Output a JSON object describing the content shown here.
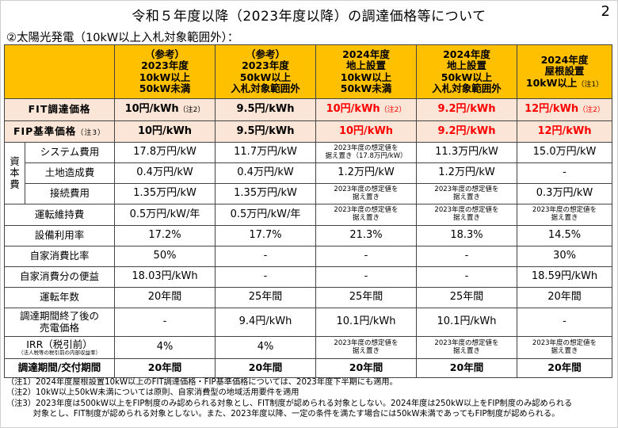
{
  "title": "令和５年度以降（2023年度以降）の調達価格等について",
  "page_number": "2",
  "subtitle": "②太陽光発電（10kW以上入札対象範囲外）：",
  "columns": [
    {
      "lines": [
        "（参考）",
        "2023年度",
        "10kW以上",
        "50kW未満"
      ]
    },
    {
      "lines": [
        "（参考）",
        "2023年度",
        "50kW以上",
        "入札対象範囲外"
      ]
    },
    {
      "lines": [
        "2024年度",
        "地上設置",
        "10kW以上",
        "50kW未満"
      ]
    },
    {
      "lines": [
        "2024年度",
        "地上設置",
        "50kW以上",
        "入札対象範囲外"
      ]
    },
    {
      "lines": [
        "2024年度",
        "屋根設置",
        "10kW以上"
      ],
      "note": "（注1）"
    }
  ],
  "rows": {
    "fit": {
      "label": "FIT調達価格",
      "values": [
        {
          "text": "10円/kWh",
          "note": "（注2）"
        },
        {
          "text": "9.5円/kWh",
          "note": ""
        },
        {
          "text": "10円/kWh",
          "note": "（注2）"
        },
        {
          "text": "9.2円/kWh",
          "note": ""
        },
        {
          "text": "12円/kWh",
          "note": "（注2）"
        }
      ]
    },
    "fip": {
      "label": "FIP基準価格",
      "note": "（注3）",
      "values": [
        "10円/kWh",
        "9.5円/kWh",
        "10円/kWh",
        "9.2円/kWh",
        "12円/kWh"
      ]
    },
    "capital_group_label": "資本費",
    "system_cost": {
      "label": "システム費用",
      "values": [
        "17.8万円/kW",
        "11.7万円/kW",
        "2023年度の想定値を据え置き（17.8万円/kW）",
        "11.3万円/kW",
        "15.0万円/kW"
      ]
    },
    "land_cost": {
      "label": "土地造成費",
      "values": [
        "0.4万円/kW",
        "0.4万円/kW",
        "1.2万円/kW",
        "1.2万円/kW",
        "-"
      ]
    },
    "connection_cost": {
      "label": "接続費用",
      "values": [
        "1.35万円/kW",
        "1.35万円/kW",
        "2023年度の想定値を据え置き",
        "2023年度の想定値を据え置き",
        "0.3万円/kW"
      ]
    },
    "om_cost": {
      "label": "運転維持費",
      "values": [
        "0.5万円/kW/年",
        "0.5万円/kW/年",
        "2023年度の想定値を据え置き",
        "2023年度の想定値を据え置き",
        "2023年度の想定値を据え置き"
      ]
    },
    "capacity_factor": {
      "label": "設備利用率",
      "values": [
        "17.2%",
        "17.7%",
        "21.3%",
        "18.3%",
        "14.5%"
      ]
    },
    "self_consumption_ratio": {
      "label": "自家消費比率",
      "values": [
        "50%",
        "-",
        "-",
        "-",
        "30%"
      ]
    },
    "self_consumption_benefit": {
      "label": "自家消費分の便益",
      "values": [
        "18.03円/kWh",
        "-",
        "-",
        "-",
        "18.59円/kWh"
      ]
    },
    "operating_years": {
      "label": "運転年数",
      "values": [
        "20年間",
        "25年間",
        "25年間",
        "25年間",
        "20年間"
      ]
    },
    "post_period_price": {
      "label_line1": "調達期間終了後の",
      "label_line2": "売電価格",
      "values": [
        "-",
        "9.4円/kWh",
        "10.1円/kWh",
        "10.1円/kWh",
        "-"
      ]
    },
    "irr": {
      "label": "IRR（税引前）",
      "sublabel": "（法人税等の税引前の内部収益率）",
      "values": [
        "4%",
        "4%",
        "2023年度の想定値を据え置き",
        "2023年度の想定値を据え置き",
        "2023年度の想定値を据え置き"
      ]
    },
    "period": {
      "label": "調達期間/交付期間",
      "values": [
        "20年間",
        "20年間",
        "20年間",
        "20年間",
        "20年間"
      ]
    }
  },
  "notes": [
    "（注1）2024年度屋根設置10kW以上のFIT調達価格・FIP基準価格については、2023年度下半期にも適用。",
    "（注2）10kW以上50kW未満については原則、自家消費型の地域活用要件を適用",
    "（注3）2023年度は500kW以上をFIP制度のみ認められる対象とし、FIT制度が認められる対象としない。2024年度は250kW以上をFIP制度のみ認められる",
    "　　　 対象とし、FIT制度が認められる対象としない。また、2023年度以降、一定の条件を満たす場合には50kW未満であってもFIP制度が認められる。"
  ],
  "colors": {
    "header": "#ffc000",
    "price_row": "#fbe5d6",
    "red_text": "#ff0000"
  }
}
